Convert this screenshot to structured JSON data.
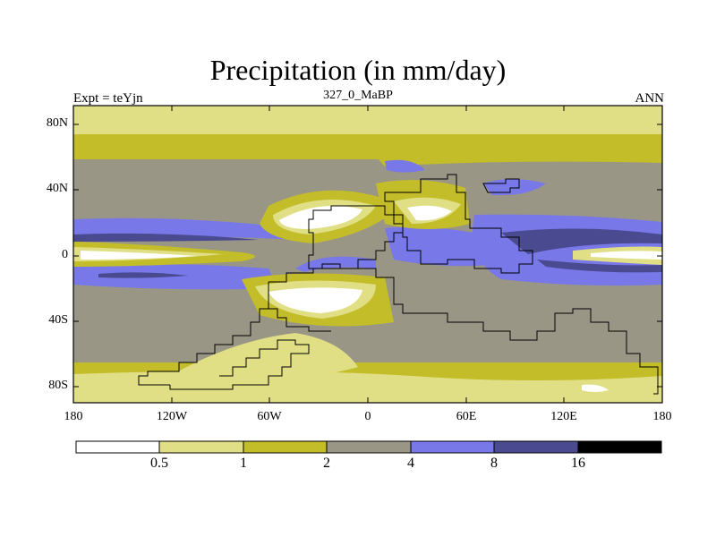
{
  "title": "Precipitation (in mm/day)",
  "left_label": "Expt = teYjn",
  "center_label": "327_0_MaBP",
  "right_label": "ANN",
  "y_axis_labels": [
    "80N",
    "40N",
    "0",
    "40S",
    "80S"
  ],
  "x_axis_labels": [
    "180",
    "120W",
    "60W",
    "0",
    "60E",
    "120E",
    "180"
  ],
  "colorbar": {
    "levels": [
      "0.5",
      "1",
      "2",
      "4",
      "8",
      "16"
    ],
    "colors": [
      "#ffffff",
      "#e0df85",
      "#c2bd28",
      "#9a9686",
      "#7878e8",
      "#4a4a90",
      "#000000"
    ]
  },
  "chart_data": {
    "type": "heatmap",
    "title": "Precipitation (in mm/day)",
    "x_ticks": [
      "180",
      "120W",
      "60W",
      "0",
      "60E",
      "120E",
      "180"
    ],
    "y_ticks": [
      "80N",
      "40N",
      "0",
      "40S",
      "80S"
    ],
    "xlim": [
      -180,
      180
    ],
    "ylim": [
      -90,
      90
    ],
    "levels": [
      0.5,
      1,
      2,
      4,
      8,
      16
    ],
    "colors": [
      "#ffffff",
      "#e0df85",
      "#c2bd28",
      "#9a9686",
      "#7878e8",
      "#4a4a90",
      "#000000"
    ]
  }
}
